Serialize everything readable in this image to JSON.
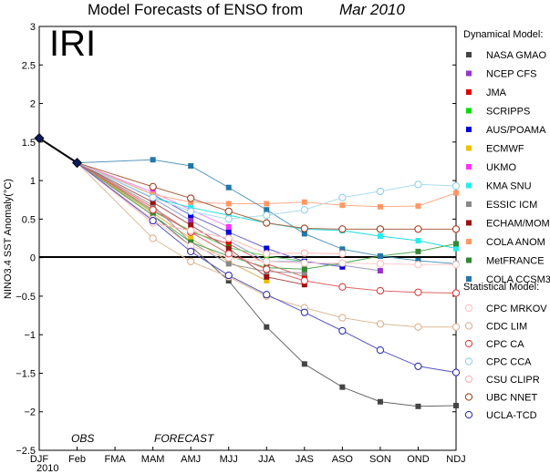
{
  "chart_data": {
    "type": "line",
    "title": "Model Forecasts of ENSO from",
    "title_date": "Mar 2010",
    "logo": "IRI",
    "ylabel": "NINO3.4 SST Anomaly(°C)",
    "ylim": [
      -2.5,
      3
    ],
    "yticks": [
      -2.5,
      -2,
      -1.5,
      -1,
      -0.5,
      0,
      0.5,
      1,
      1.5,
      2,
      2.5,
      3
    ],
    "ytick_labels": [
      "−2.5",
      "−2",
      "−1.5",
      "−1",
      "−0.5",
      "0",
      "0.5",
      "1",
      "1.5",
      "2",
      "2.5",
      "3"
    ],
    "x_labels": [
      "DJF",
      "Feb",
      "FMA",
      "MAM",
      "AMJ",
      "MJJ",
      "JJA",
      "JAS",
      "ASO",
      "SON",
      "OND",
      "NDJ"
    ],
    "x_year_label": "2010",
    "annotations": {
      "obs": "OBS",
      "forecast": "FORECAST"
    },
    "observed": {
      "x": [
        0,
        1
      ],
      "values": [
        1.55,
        1.23
      ]
    },
    "legend_dynamical_title": "Dynamical Model:",
    "legend_statistical_title": "Statistical Model:",
    "series": [
      {
        "name": "NASA GMAO",
        "group": "dynamical",
        "color": "#444444",
        "marker": "square",
        "line": "#666666",
        "values": [
          0.55,
          0.15,
          -0.3,
          -0.9,
          -1.38,
          -1.68,
          -1.87,
          -1.93,
          -1.92
        ]
      },
      {
        "name": "NCEP CFS",
        "group": "dynamical",
        "color": "#9933cc",
        "marker": "square",
        "line": "#9999cc",
        "values": [
          0.77,
          0.48,
          0.22,
          -0.05,
          -0.05,
          -0.1,
          -0.17
        ]
      },
      {
        "name": "JMA",
        "group": "dynamical",
        "color": "#dd0000",
        "marker": "square",
        "line": "#dd6666",
        "values": [
          0.65,
          0.33,
          0.18,
          -0.08,
          -0.25
        ]
      },
      {
        "name": "SCRIPPS",
        "group": "dynamical",
        "color": "#00dd00",
        "marker": "square",
        "line": "#66cc66",
        "values": [
          0.6,
          0.35,
          0.13,
          0.02,
          -0.05
        ]
      },
      {
        "name": "AUS/POAMA",
        "group": "dynamical",
        "color": "#0000dd",
        "marker": "square",
        "line": "#6666cc",
        "values": [
          0.82,
          0.55,
          0.33,
          0.12,
          -0.05,
          -0.12
        ]
      },
      {
        "name": "ECMWF",
        "group": "dynamical",
        "color": "#f0c000",
        "marker": "square",
        "line": "#e0b060",
        "values": [
          0.58,
          0.25,
          -0.05,
          -0.3
        ]
      },
      {
        "name": "UKMO",
        "group": "dynamical",
        "color": "#ff33ff",
        "marker": "square",
        "line": "#ee88ee",
        "values": [
          0.85,
          0.62,
          0.4
        ]
      },
      {
        "name": "KMA SNU",
        "group": "dynamical",
        "color": "#22eeee",
        "marker": "square",
        "line": "#22dddd",
        "values": [
          0.78,
          0.65,
          0.55,
          0.45,
          0.37,
          0.35,
          0.28,
          0.22,
          0.12
        ]
      },
      {
        "name": "ESSIC ICM",
        "group": "dynamical",
        "color": "#888888",
        "marker": "square",
        "line": "#999999",
        "values": [
          0.68,
          0.2,
          -0.08,
          -0.18,
          -0.2
        ]
      },
      {
        "name": "ECHAM/MOM",
        "group": "dynamical",
        "color": "#991111",
        "marker": "square",
        "line": "#aa5555",
        "values": [
          0.72,
          0.42,
          0.12,
          -0.25,
          -0.35
        ]
      },
      {
        "name": "COLA ANOM",
        "group": "dynamical",
        "color": "#ff9966",
        "marker": "square",
        "line": "#ffaa88",
        "values": [
          0.82,
          0.72,
          0.7,
          0.7,
          0.72,
          0.68,
          0.66,
          0.67,
          0.84
        ]
      },
      {
        "name": "MetFRANCE",
        "group": "dynamical",
        "color": "#338833",
        "marker": "square",
        "line": "#55aa55",
        "values": [
          0.55,
          0.2,
          0.02,
          -0.13,
          -0.15,
          -0.07,
          0.02,
          0.08,
          0.18
        ]
      },
      {
        "name": "COLA CCSM3",
        "group": "dynamical",
        "color": "#2277aa",
        "marker": "square",
        "line": "#5599bb",
        "values": [
          1.27,
          1.19,
          0.91,
          0.62,
          0.31,
          0.11,
          0.02,
          -0.04,
          -0.08
        ]
      },
      {
        "name": "CPC MRKOV",
        "group": "statistical",
        "color": "#ffbbbb",
        "marker": "circle",
        "line": "#ffcccc",
        "values": [
          0.5,
          0.15,
          0.0,
          -0.05,
          -0.07,
          -0.07,
          -0.08,
          -0.09,
          -0.09
        ]
      },
      {
        "name": "CDC LIM",
        "group": "statistical",
        "color": "#ddaa88",
        "marker": "circle",
        "line": "#ddbb99",
        "values": [
          0.25,
          -0.05,
          -0.25,
          -0.5,
          -0.65,
          -0.78,
          -0.86,
          -0.9,
          -0.9
        ]
      },
      {
        "name": "CPC CA",
        "group": "statistical",
        "color": "#dd3333",
        "marker": "circle",
        "line": "#dd6666",
        "values": [
          0.62,
          0.33,
          0.05,
          -0.15,
          -0.3,
          -0.38,
          -0.43,
          -0.45,
          -0.46
        ]
      },
      {
        "name": "CPC CCA",
        "group": "statistical",
        "color": "#88ccee",
        "marker": "circle",
        "line": "#aaddee",
        "values": [
          0.78,
          0.6,
          0.5,
          0.55,
          0.62,
          0.78,
          0.86,
          0.95,
          0.93
        ]
      },
      {
        "name": "CSU CLIPR",
        "group": "statistical",
        "color": "#ffaaaa",
        "marker": "circle",
        "line": "#ffbbbb",
        "values": [
          0.45,
          0.35,
          0.25,
          0.05,
          0.06,
          0.05
        ]
      },
      {
        "name": "UBC NNET",
        "group": "statistical",
        "color": "#993311",
        "marker": "circle",
        "line": "#aa6644",
        "values": [
          0.92,
          0.77,
          0.6,
          0.45,
          0.38,
          0.37,
          0.37,
          0.37,
          0.37
        ]
      },
      {
        "name": "UCLA-TCD",
        "group": "statistical",
        "color": "#2222aa",
        "marker": "circle",
        "line": "#5555bb",
        "values": [
          0.48,
          0.08,
          -0.23,
          -0.48,
          -0.71,
          -0.95,
          -1.2,
          -1.41,
          -1.49
        ]
      }
    ]
  }
}
